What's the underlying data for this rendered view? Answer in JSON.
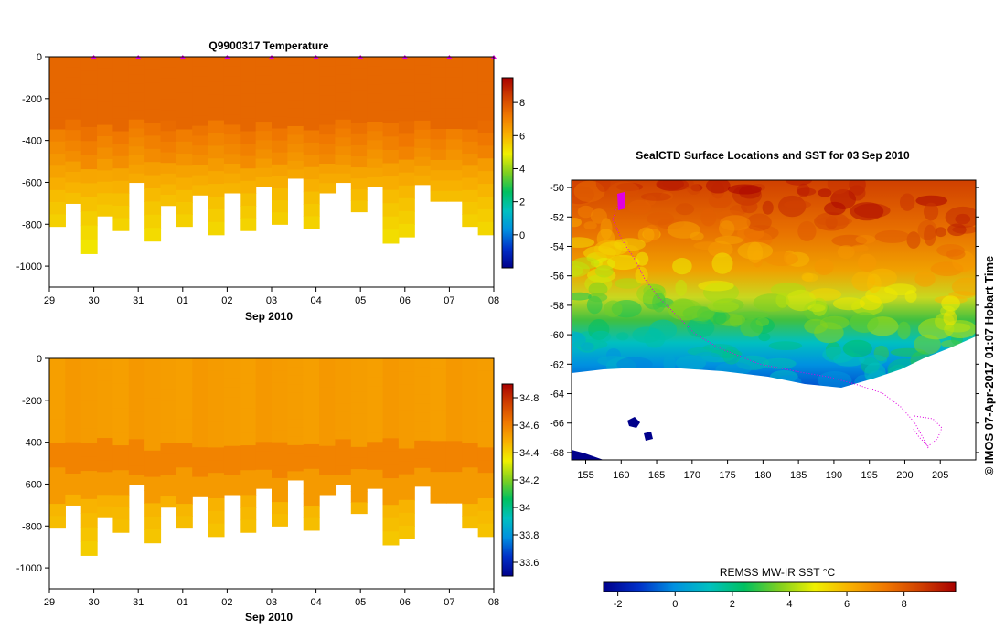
{
  "colors": {
    "ramp": [
      "#00008b",
      "#0030c8",
      "#0090e0",
      "#00c0c0",
      "#00c060",
      "#80d020",
      "#f0f000",
      "#f8b000",
      "#f07800",
      "#d04000",
      "#a80000"
    ],
    "track": "#e000e0",
    "land": "#ffffff"
  },
  "chart_data": [
    {
      "type": "heatmap",
      "title": "Q9900317  Temperature",
      "xlabel": "Sep 2010",
      "ylabel": "",
      "x_ticks": [
        "29",
        "30",
        "31",
        "01",
        "02",
        "03",
        "04",
        "05",
        "06",
        "07",
        "08"
      ],
      "y_ticks": [
        "0",
        "-200",
        "-400",
        "-600",
        "-800",
        "-1000"
      ],
      "ylim": [
        -1100,
        0
      ],
      "profile_depths": [
        -810,
        -700,
        -940,
        -760,
        -830,
        -600,
        -880,
        -710,
        -810,
        -660,
        -850,
        -650,
        -830,
        -620,
        -800,
        -580,
        -820,
        -650,
        -600,
        -740,
        -620,
        -890,
        -860,
        -610,
        -690,
        -690,
        -810,
        -850
      ],
      "surface_value": 7.5,
      "deep_value": 6.8,
      "colorbar_ticks": [
        "8",
        "6",
        "4",
        "2",
        "0"
      ],
      "colorbar_range": [
        -2,
        9.5
      ]
    },
    {
      "type": "heatmap",
      "title": "",
      "xlabel": "Sep 2010",
      "ylabel": "",
      "x_ticks": [
        "29",
        "30",
        "31",
        "01",
        "02",
        "03",
        "04",
        "05",
        "06",
        "07",
        "08"
      ],
      "y_ticks": [
        "0",
        "-200",
        "-400",
        "-600",
        "-800",
        "-1000"
      ],
      "ylim": [
        -1100,
        0
      ],
      "surface_value": 34.55,
      "colorbar_ticks": [
        "34.8",
        "34.6",
        "34.4",
        "34.2",
        "34",
        "33.8",
        "33.6"
      ],
      "colorbar_range": [
        33.5,
        34.9
      ]
    },
    {
      "type": "heatmap",
      "title": "SealCTD Surface Locations and SST for 03 Sep 2010",
      "x_ticks": [
        "155",
        "160",
        "165",
        "170",
        "175",
        "180",
        "185",
        "190",
        "195",
        "200",
        "205"
      ],
      "y_ticks": [
        "-50",
        "-52",
        "-54",
        "-56",
        "-58",
        "-60",
        "-62",
        "-64",
        "-66",
        "-68"
      ],
      "xlim": [
        153,
        210
      ],
      "ylim": [
        -68.5,
        -49.5
      ],
      "colorbar_label": "REMSS MW-IR SST °C",
      "colorbar_ticks": [
        "-2",
        "0",
        "2",
        "4",
        "6",
        "8"
      ],
      "colorbar_range": [
        -2.5,
        9.8
      ]
    }
  ],
  "watermark": "© IMOS 07-Apr-2017 01:07 Hobart Time"
}
